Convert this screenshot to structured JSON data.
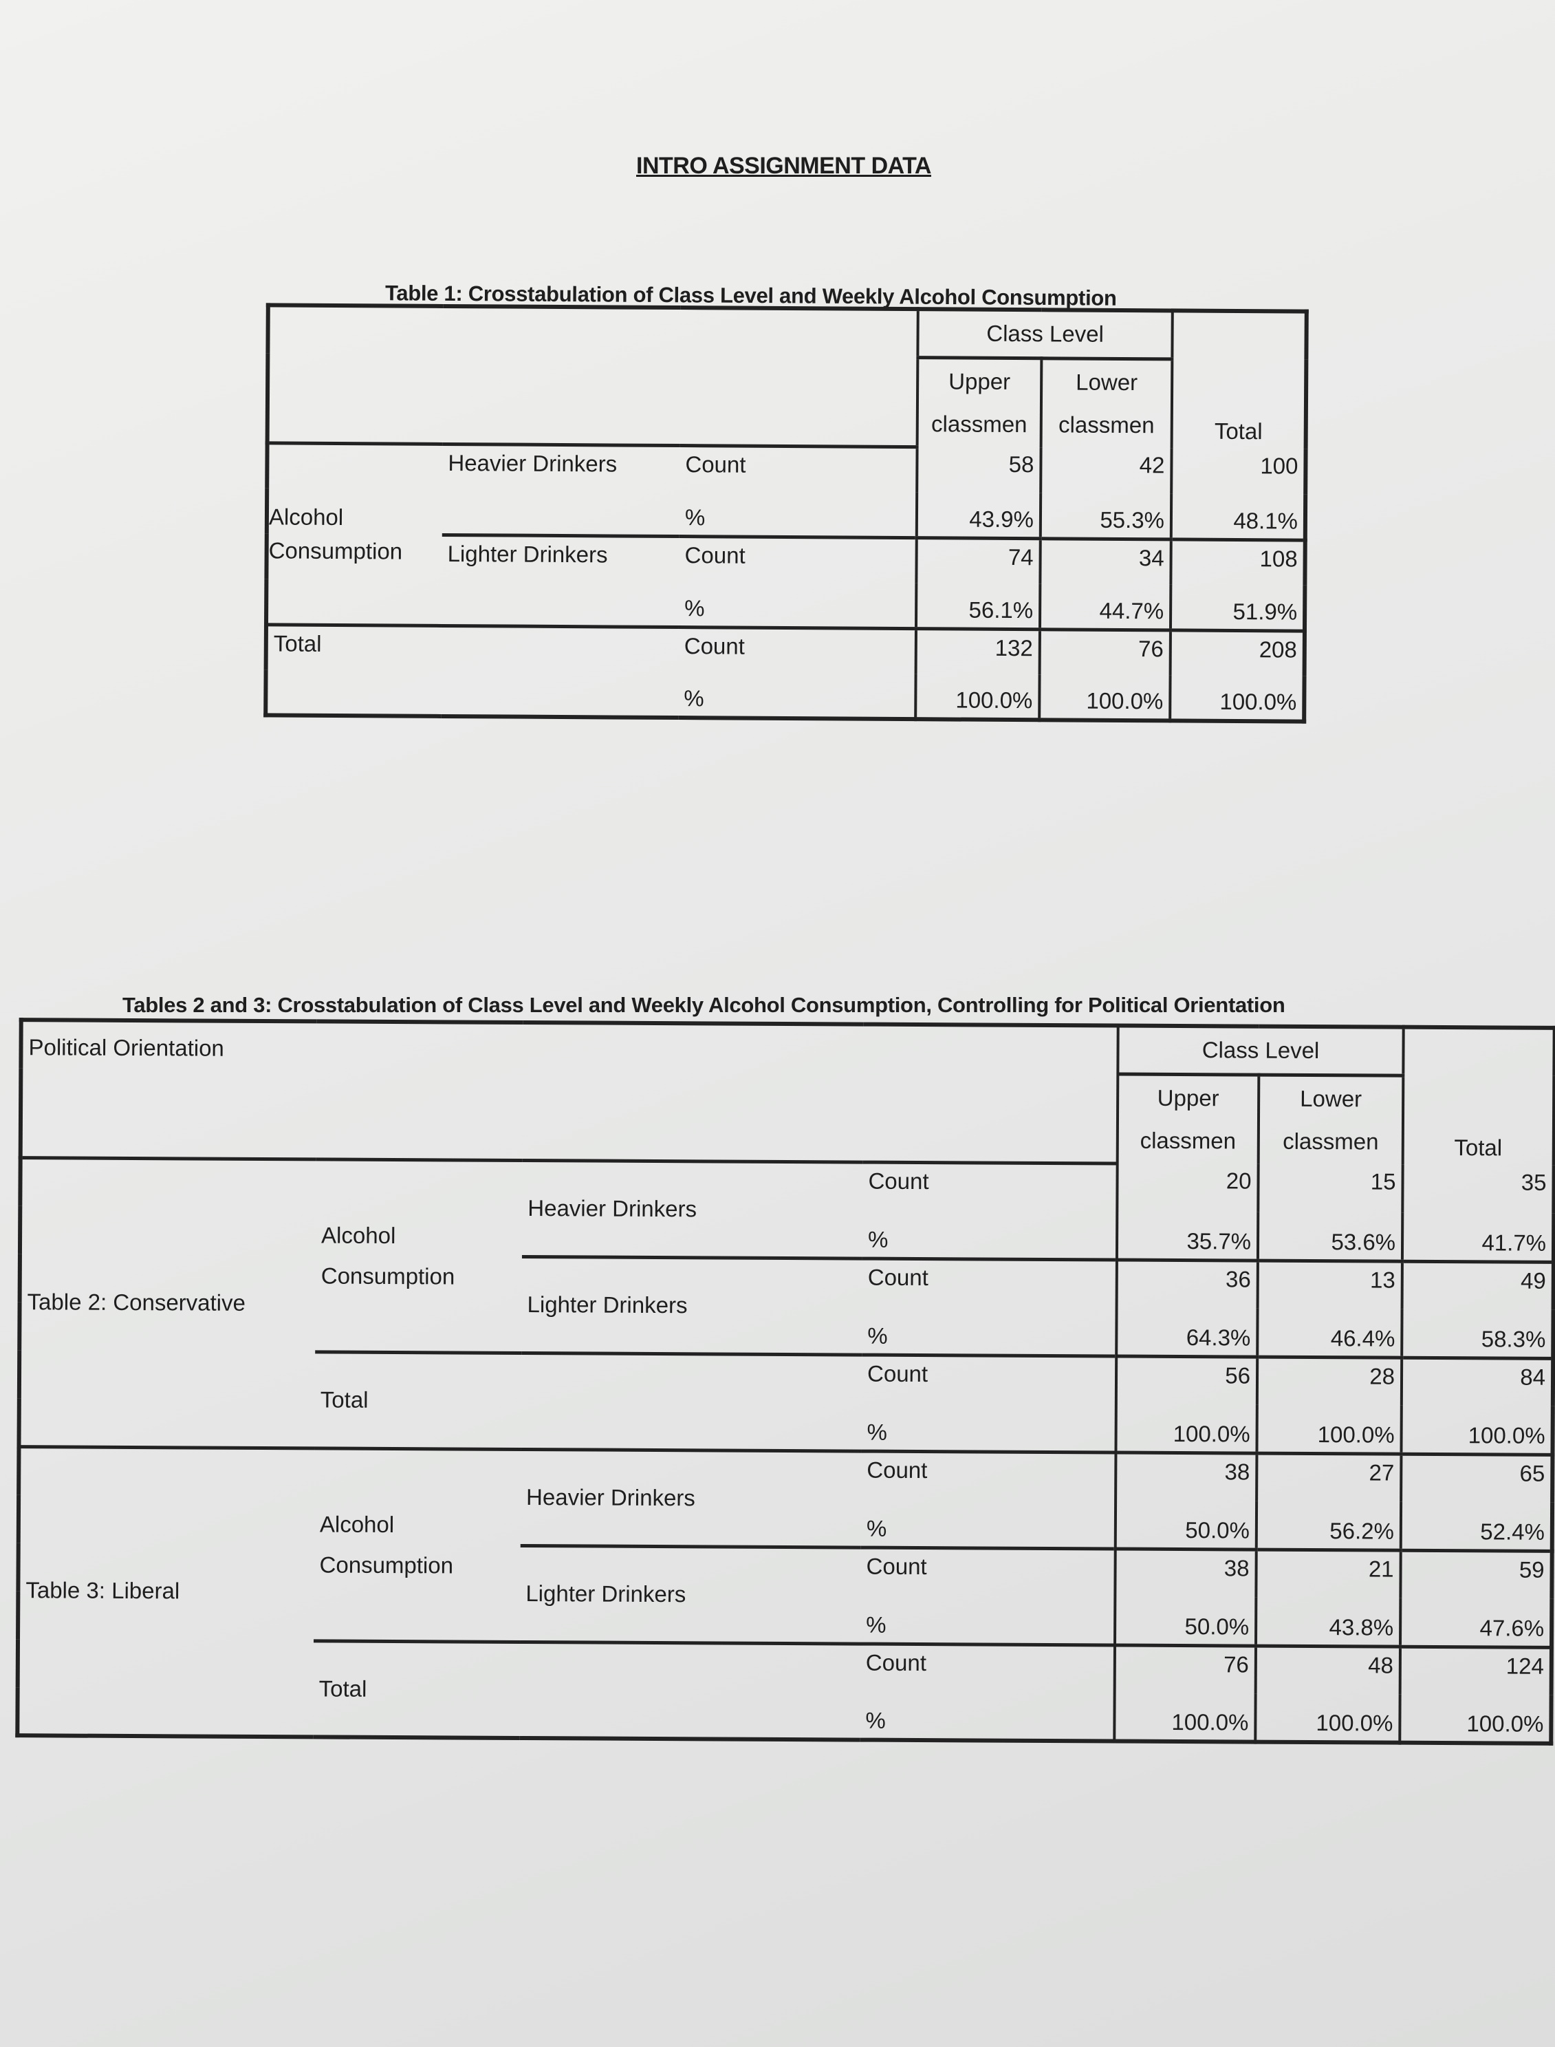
{
  "title": "INTRO ASSIGNMENT DATA",
  "table1": {
    "caption": "Table 1: Crosstabulation of Class Level and Weekly Alcohol Consumption",
    "header": {
      "group": "Class Level",
      "upper": "Upper classmen",
      "lower": "Lower classmen",
      "total": "Total"
    },
    "row_label": "Alcohol Consumption",
    "total_label": "Total",
    "count_label": "Count",
    "pct_label": "%",
    "rows": [
      {
        "label": "Heavier Drinkers",
        "count": [
          "58",
          "42",
          "100"
        ],
        "pct": [
          "43.9%",
          "55.3%",
          "48.1%"
        ]
      },
      {
        "label": "Lighter Drinkers",
        "count": [
          "74",
          "34",
          "108"
        ],
        "pct": [
          "56.1%",
          "44.7%",
          "51.9%"
        ]
      }
    ],
    "total": {
      "count": [
        "132",
        "76",
        "208"
      ],
      "pct": [
        "100.0%",
        "100.0%",
        "100.0%"
      ]
    }
  },
  "table23": {
    "caption": "Tables 2 and 3: Crosstabulation of Class Level and Weekly Alcohol Consumption, Controlling for Political Orientation",
    "corner_label": "Political Orientation",
    "header": {
      "group": "Class Level",
      "upper": "Upper classmen",
      "lower": "Lower classmen",
      "total": "Total"
    },
    "count_label": "Count",
    "pct_label": "%",
    "blocks": [
      {
        "label": "Table 2: Conservative",
        "row_label": "Alcohol Consumption",
        "total_label": "Total",
        "rows": [
          {
            "label": "Heavier Drinkers",
            "count": [
              "20",
              "15",
              "35"
            ],
            "pct": [
              "35.7%",
              "53.6%",
              "41.7%"
            ]
          },
          {
            "label": "Lighter Drinkers",
            "count": [
              "36",
              "13",
              "49"
            ],
            "pct": [
              "64.3%",
              "46.4%",
              "58.3%"
            ]
          }
        ],
        "total": {
          "count": [
            "56",
            "28",
            "84"
          ],
          "pct": [
            "100.0%",
            "100.0%",
            "100.0%"
          ]
        }
      },
      {
        "label": "Table 3: Liberal",
        "row_label": "Alcohol Consumption",
        "total_label": "Total",
        "rows": [
          {
            "label": "Heavier Drinkers",
            "count": [
              "38",
              "27",
              "65"
            ],
            "pct": [
              "50.0%",
              "56.2%",
              "52.4%"
            ]
          },
          {
            "label": "Lighter Drinkers",
            "count": [
              "38",
              "21",
              "59"
            ],
            "pct": [
              "50.0%",
              "43.8%",
              "47.6%"
            ]
          }
        ],
        "total": {
          "count": [
            "76",
            "48",
            "124"
          ],
          "pct": [
            "100.0%",
            "100.0%",
            "100.0%"
          ]
        }
      }
    ]
  }
}
